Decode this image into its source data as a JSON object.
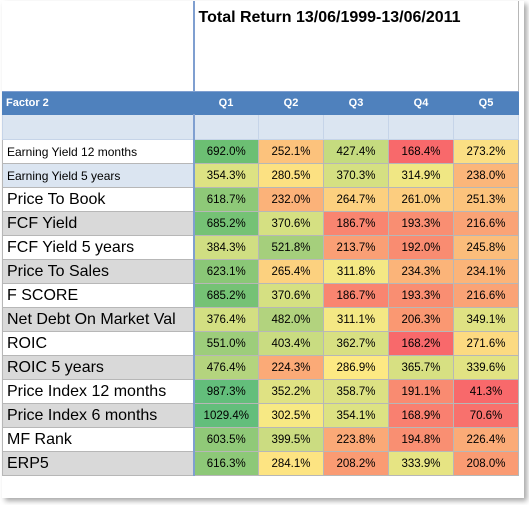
{
  "title": "Total Return 13/06/1999-13/06/2011",
  "header": {
    "factor_label": "Factor 2",
    "quintiles": [
      "Q1",
      "Q2",
      "Q3",
      "Q4",
      "Q5"
    ]
  },
  "rows": [
    {
      "label": "Earning Yield 12 months",
      "values": [
        "692.0%",
        "252.1%",
        "427.4%",
        "168.4%",
        "273.2%"
      ],
      "colors": [
        "#6cbf73",
        "#fcc27c",
        "#c5db7f",
        "#f8696b",
        "#fbdf84"
      ]
    },
    {
      "label": "Earning Yield 5 years",
      "values": [
        "354.3%",
        "280.5%",
        "370.3%",
        "314.9%",
        "238.0%"
      ],
      "colors": [
        "#dde283",
        "#fce182",
        "#d5e082",
        "#f0e784",
        "#fbb67a"
      ]
    },
    {
      "label": "Price To Book",
      "values": [
        "618.7%",
        "232.0%",
        "264.7%",
        "261.0%",
        "251.3%"
      ],
      "colors": [
        "#8ec978",
        "#fbb279",
        "#fcd07f",
        "#fccd7f",
        "#fcc37c"
      ]
    },
    {
      "label": "FCF Yield",
      "values": [
        "685.2%",
        "370.6%",
        "186.7%",
        "193.3%",
        "216.6%"
      ],
      "colors": [
        "#75c275",
        "#d5e082",
        "#f98570",
        "#f98e72",
        "#faa376"
      ]
    },
    {
      "label": "FCF Yield 5 years",
      "values": [
        "384.3%",
        "521.8%",
        "213.7%",
        "192.0%",
        "245.8%"
      ],
      "colors": [
        "#d0de82",
        "#a5cf7c",
        "#fa9f75",
        "#f98c71",
        "#fbbd7b"
      ]
    },
    {
      "label": "Price To Sales",
      "values": [
        "623.1%",
        "265.4%",
        "311.8%",
        "234.3%",
        "234.1%"
      ],
      "colors": [
        "#8ac777",
        "#fcd17f",
        "#f4e884",
        "#fbb479",
        "#fbb479"
      ]
    },
    {
      "label": "F SCORE",
      "values": [
        "685.2%",
        "370.6%",
        "186.7%",
        "193.3%",
        "216.6%"
      ],
      "colors": [
        "#75c275",
        "#d5e082",
        "#f98570",
        "#f98e72",
        "#faa376"
      ]
    },
    {
      "label": "Net Debt On Market Val",
      "values": [
        "376.4%",
        "482.0%",
        "311.1%",
        "206.3%",
        "349.1%"
      ],
      "colors": [
        "#d3df82",
        "#b2d37e",
        "#f4e884",
        "#fa9872",
        "#dfe283"
      ]
    },
    {
      "label": "ROIC",
      "values": [
        "551.0%",
        "403.4%",
        "362.7%",
        "168.2%",
        "271.6%"
      ],
      "colors": [
        "#9dcd7b",
        "#c9dc81",
        "#d8e082",
        "#f8696b",
        "#fcda81"
      ]
    },
    {
      "label": "ROIC 5 years",
      "values": [
        "476.4%",
        "224.3%",
        "286.9%",
        "365.7%",
        "339.6%"
      ],
      "colors": [
        "#b4d47e",
        "#fbaa77",
        "#fde983",
        "#d7e082",
        "#e2e383"
      ]
    },
    {
      "label": "Price Index 12 months",
      "values": [
        "987.3%",
        "352.2%",
        "358.7%",
        "191.1%",
        "41.3%"
      ],
      "colors": [
        "#63be7b",
        "#dfe283",
        "#dce183",
        "#f98b71",
        "#f8696b"
      ]
    },
    {
      "label": "Price Index 6 months",
      "values": [
        "1029.4%",
        "302.5%",
        "354.1%",
        "168.9%",
        "70.6%"
      ],
      "colors": [
        "#63be7b",
        "#f7e984",
        "#dde283",
        "#f98070",
        "#f8716d"
      ]
    },
    {
      "label": "MF Rank",
      "values": [
        "603.5%",
        "399.5%",
        "223.8%",
        "194.8%",
        "226.4%"
      ],
      "colors": [
        "#90c978",
        "#cbdc81",
        "#fba977",
        "#f98f72",
        "#fbab77"
      ]
    },
    {
      "label": "ERP5",
      "values": [
        "616.3%",
        "284.1%",
        "208.2%",
        "333.9%",
        "208.0%"
      ],
      "colors": [
        "#8dc878",
        "#fde482",
        "#fa9b73",
        "#e6e483",
        "#fa9b73"
      ]
    }
  ]
}
